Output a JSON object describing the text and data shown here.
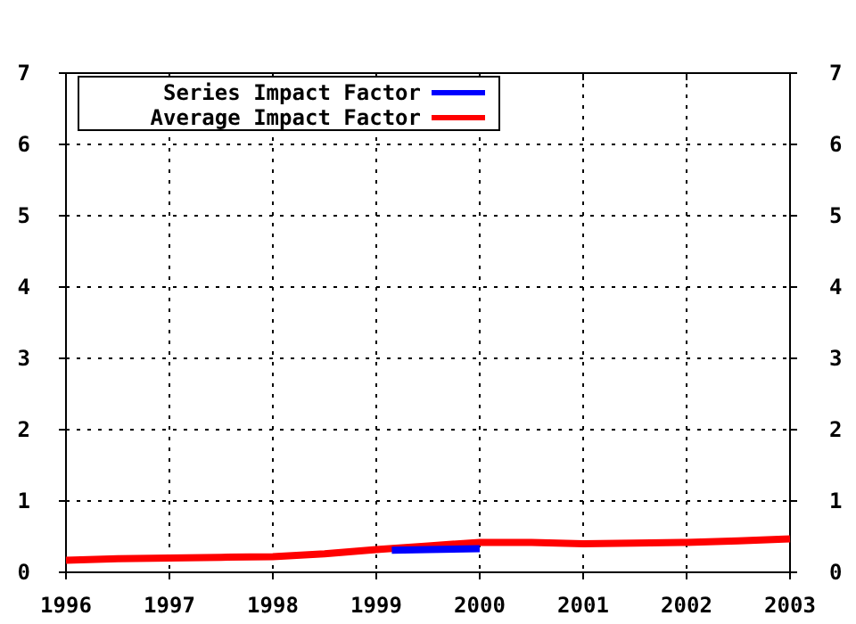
{
  "chart_data": {
    "type": "line",
    "xlim": [
      1996,
      2003
    ],
    "xticks": [
      1996,
      1997,
      1998,
      1999,
      2000,
      2001,
      2002,
      2003
    ],
    "ylim": [
      0,
      7
    ],
    "yticks": [
      0,
      1,
      2,
      3,
      4,
      5,
      6,
      7
    ],
    "y2lim": [
      0,
      7
    ],
    "y2ticks": [
      0,
      1,
      2,
      3,
      4,
      5,
      6,
      7
    ],
    "grid": true,
    "legend": "top left",
    "marker": "none",
    "line_style": "solid",
    "series": [
      {
        "name": "Series Impact Factor",
        "color": "#0000ff",
        "x": [
          1999.15,
          1999.5,
          2000
        ],
        "values": [
          0.31,
          0.32,
          0.33
        ]
      },
      {
        "name": "Average Impact Factor",
        "color": "#ff0000",
        "x": [
          1996,
          1996.5,
          1997,
          1997.5,
          1998,
          1998.5,
          1999,
          1999.5,
          2000,
          2000.5,
          2001,
          2001.5,
          2002,
          2002.5,
          2003
        ],
        "values": [
          0.17,
          0.19,
          0.2,
          0.21,
          0.22,
          0.26,
          0.32,
          0.37,
          0.42,
          0.42,
          0.4,
          0.41,
          0.42,
          0.44,
          0.47
        ]
      }
    ]
  }
}
